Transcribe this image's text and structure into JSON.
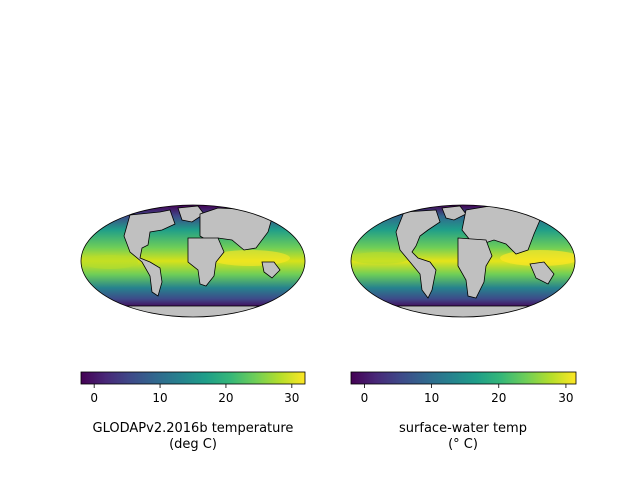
{
  "panels": [
    {
      "id": "glodap",
      "colorbar_label_line1": "GLODAPv2.2016b temperature",
      "colorbar_label_line2": "(deg C)",
      "colormap": "viridis",
      "vmin": -2,
      "vmax": 32,
      "ticks": [
        0,
        10,
        20,
        30
      ],
      "tick_labels": [
        "0",
        "10",
        "20",
        "30"
      ],
      "projection": "Mollweide",
      "land_color": "#c0c0c0"
    },
    {
      "id": "model",
      "colorbar_label_line1": "surface-water temp",
      "colorbar_label_line2": "(° C)",
      "colormap": "viridis",
      "vmin": -2,
      "vmax": 31.5,
      "ticks": [
        0,
        10,
        20,
        30
      ],
      "tick_labels": [
        "0",
        "10",
        "20",
        "30"
      ],
      "projection": "Mollweide",
      "land_color": "#c0c0c0"
    }
  ],
  "colors": {
    "viridis": [
      "#440154",
      "#482878",
      "#3e4a89",
      "#31688e",
      "#26828e",
      "#1f9e89",
      "#35b779",
      "#6ece58",
      "#b5de2b",
      "#fde725"
    ],
    "land": "#c0c0c0",
    "outline": "#000000"
  }
}
